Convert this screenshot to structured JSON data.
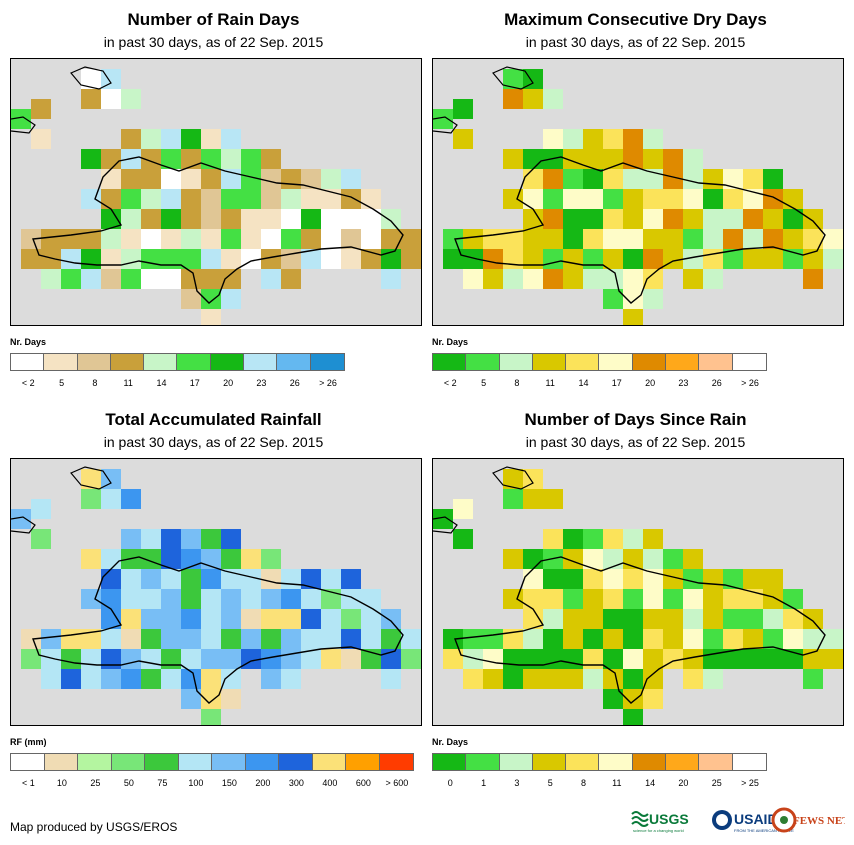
{
  "panels": [
    {
      "title": "Number of Rain Days",
      "subtitle": "in past 30 days, as of 22 Sep. 2015",
      "legend_title": "Nr. Days",
      "legend_colors": [
        "#ffffff",
        "#f5e3c3",
        "#e0c695",
        "#c9a03a",
        "#c8f5c8",
        "#44e044",
        "#15b815",
        "#b8e6f5",
        "#64b8f0",
        "#1e8fd2"
      ],
      "legend_labels": [
        "< 2",
        "5",
        "8",
        "11",
        "14",
        "17",
        "20",
        "23",
        "26",
        "> 26"
      ]
    },
    {
      "title": "Maximum Consecutive Dry Days",
      "subtitle": "in past 30 days, as of 22 Sep. 2015",
      "legend_title": "Nr. Days",
      "legend_colors": [
        "#15b815",
        "#44e044",
        "#c8f5c8",
        "#d9c800",
        "#fbe35a",
        "#fefcc8",
        "#df8a00",
        "#ffa81a",
        "#ffc28f",
        "#ffffff"
      ],
      "legend_labels": [
        "< 2",
        "5",
        "8",
        "11",
        "14",
        "17",
        "20",
        "23",
        "26",
        "> 26"
      ]
    },
    {
      "title": "Total Accumulated Rainfall",
      "subtitle": "in past 30 days, as of 22 Sep. 2015",
      "legend_title": "RF (mm)",
      "legend_colors": [
        "#ffffff",
        "#f0dcb4",
        "#b4f5a0",
        "#78e678",
        "#3cc83c",
        "#b4e6f5",
        "#78bef5",
        "#3c96f0",
        "#1e64dc",
        "#fbe178",
        "#ffa000",
        "#ff3c00"
      ],
      "legend_labels": [
        "< 1",
        "10",
        "25",
        "50",
        "75",
        "100",
        "150",
        "200",
        "300",
        "400",
        "600",
        "> 600"
      ]
    },
    {
      "title": "Number of Days Since Rain",
      "subtitle": "in past 30 days, as of 22 Sep. 2015",
      "legend_title": "Nr. Days",
      "legend_colors": [
        "#15b815",
        "#44e044",
        "#c8f5c8",
        "#d9c800",
        "#fbe35a",
        "#fefcc8",
        "#df8a00",
        "#ffa81a",
        "#ffc28f",
        "#ffffff"
      ],
      "legend_labels": [
        "0",
        "1",
        "3",
        "5",
        "8",
        "11",
        "14",
        "20",
        "25",
        "> 25"
      ]
    }
  ],
  "credit": "Map produced by USGS/EROS",
  "logos": {
    "usgs": "USGS",
    "usgs_tagline": "science for a changing world",
    "usaid": "USAID",
    "usaid_tagline": "FROM THE AMERICAN PEOPLE",
    "fewsnet": "FEWS NET"
  }
}
